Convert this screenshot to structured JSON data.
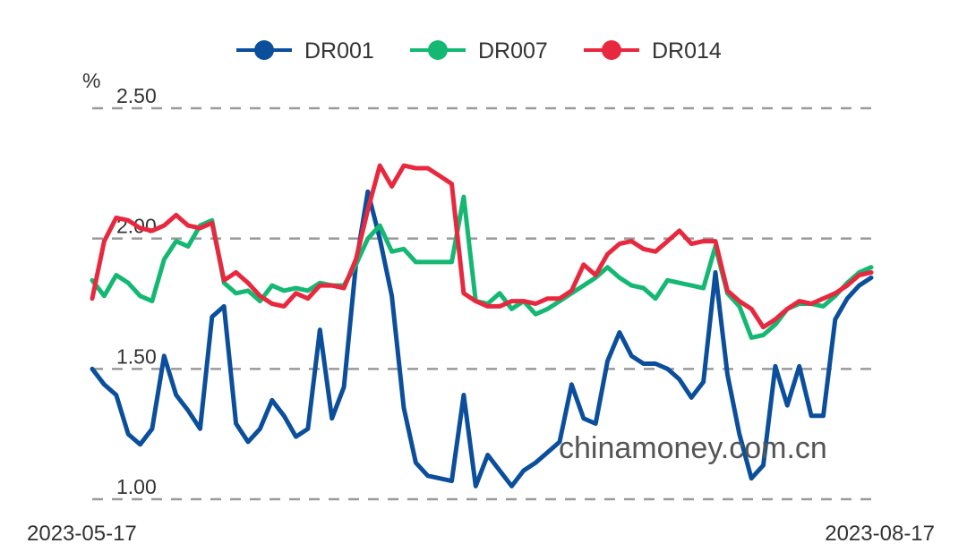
{
  "chart_data": {
    "type": "line",
    "y_unit": "%",
    "ylim": [
      1.0,
      2.5
    ],
    "yticks": [
      "2.50",
      "2.00",
      "1.50",
      "1.00"
    ],
    "ytick_values": [
      2.5,
      2.0,
      1.5,
      1.0
    ],
    "x_start_label": "2023-05-17",
    "x_end_label": "2023-08-17",
    "grid": true,
    "legend_position": "top-center",
    "watermark": "chinamoney.com.cn",
    "series": [
      {
        "name": "DR001",
        "color": "#0b4f9c",
        "values": [
          1.5,
          1.44,
          1.4,
          1.25,
          1.21,
          1.27,
          1.55,
          1.4,
          1.34,
          1.27,
          1.7,
          1.74,
          1.29,
          1.22,
          1.27,
          1.38,
          1.32,
          1.24,
          1.27,
          1.65,
          1.31,
          1.43,
          1.9,
          2.18,
          2.0,
          1.78,
          1.35,
          1.14,
          1.09,
          1.08,
          1.07,
          1.4,
          1.05,
          1.17,
          1.11,
          1.05,
          1.11,
          1.14,
          1.18,
          1.22,
          1.44,
          1.31,
          1.29,
          1.53,
          1.64,
          1.55,
          1.52,
          1.52,
          1.5,
          1.46,
          1.39,
          1.45,
          1.87,
          1.48,
          1.25,
          1.08,
          1.13,
          1.51,
          1.36,
          1.51,
          1.32,
          1.32,
          1.69,
          1.77,
          1.82,
          1.85
        ]
      },
      {
        "name": "DR007",
        "color": "#14b872",
        "values": [
          1.84,
          1.78,
          1.86,
          1.83,
          1.78,
          1.76,
          1.92,
          1.99,
          1.97,
          2.05,
          2.07,
          1.83,
          1.79,
          1.8,
          1.76,
          1.82,
          1.8,
          1.81,
          1.8,
          1.83,
          1.82,
          1.82,
          1.9,
          2.0,
          2.05,
          1.95,
          1.96,
          1.91,
          1.91,
          1.91,
          1.91,
          2.16,
          1.76,
          1.75,
          1.79,
          1.73,
          1.76,
          1.71,
          1.73,
          1.76,
          1.79,
          1.82,
          1.85,
          1.89,
          1.85,
          1.82,
          1.81,
          1.77,
          1.84,
          1.83,
          1.82,
          1.81,
          1.97,
          1.79,
          1.74,
          1.62,
          1.63,
          1.67,
          1.73,
          1.75,
          1.75,
          1.74,
          1.78,
          1.83,
          1.87,
          1.89
        ]
      },
      {
        "name": "DR014",
        "color": "#e8283e",
        "values": [
          1.77,
          1.99,
          2.08,
          2.07,
          2.04,
          2.03,
          2.05,
          2.09,
          2.05,
          2.04,
          2.06,
          1.84,
          1.87,
          1.83,
          1.78,
          1.75,
          1.74,
          1.79,
          1.77,
          1.82,
          1.82,
          1.81,
          1.92,
          2.11,
          2.28,
          2.2,
          2.28,
          2.27,
          2.27,
          2.24,
          2.21,
          1.79,
          1.76,
          1.74,
          1.74,
          1.76,
          1.76,
          1.75,
          1.77,
          1.77,
          1.8,
          1.9,
          1.86,
          1.94,
          1.98,
          1.99,
          1.96,
          1.95,
          1.99,
          2.03,
          1.98,
          1.99,
          1.99,
          1.8,
          1.76,
          1.73,
          1.66,
          1.69,
          1.73,
          1.76,
          1.75,
          1.77,
          1.79,
          1.82,
          1.86,
          1.87
        ]
      }
    ]
  }
}
